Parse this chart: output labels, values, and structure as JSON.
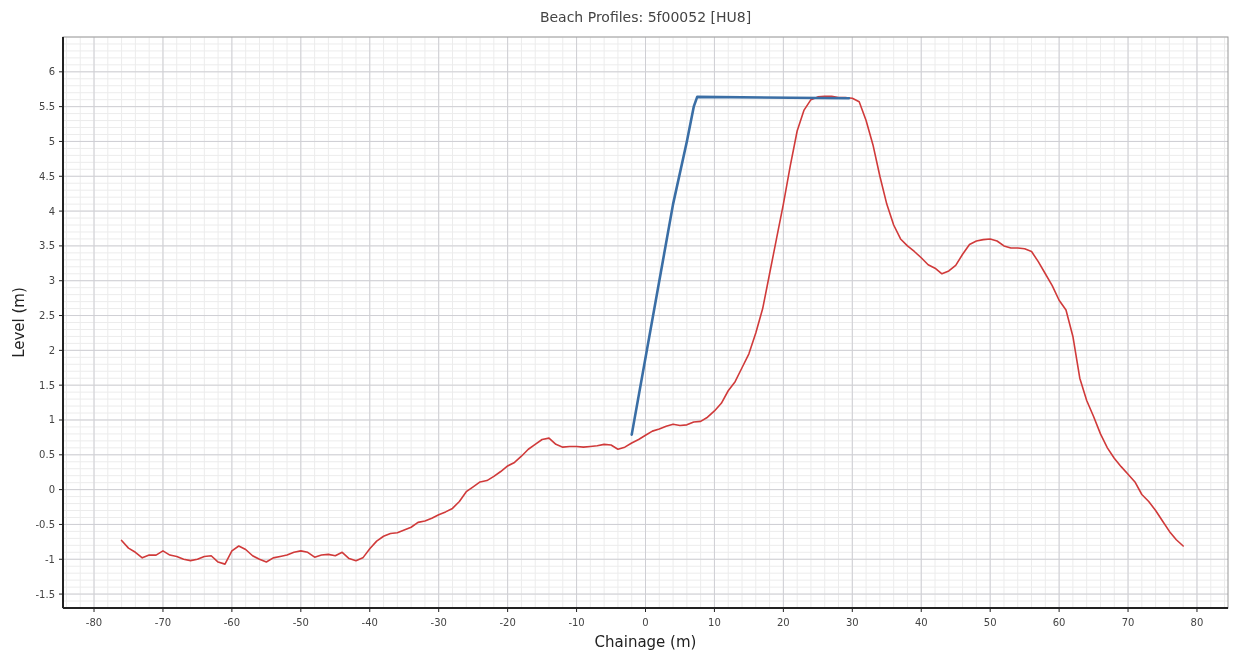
{
  "chart_data": {
    "type": "line",
    "title": "Beach Profiles: 5f00052 [HU8]",
    "xlabel": "Chainage (m)",
    "ylabel": "Level (m)",
    "xlim": [
      -84.5,
      84.5
    ],
    "ylim": [
      -1.7,
      6.5
    ],
    "xticks": [
      -80,
      -70,
      -60,
      -50,
      -40,
      -30,
      -20,
      -10,
      0,
      10,
      20,
      30,
      40,
      50,
      60,
      70,
      80
    ],
    "yticks": [
      -1.5,
      -1,
      -0.5,
      0,
      0.5,
      1,
      1.5,
      2,
      2.5,
      3,
      3.5,
      4,
      4.5,
      5,
      5.5,
      6
    ],
    "grid": true,
    "line_style": "solid",
    "marker": "none",
    "series": [
      {
        "color": "#d03a3a",
        "x": [
          -76,
          -75,
          -74,
          -73,
          -72,
          -71,
          -70,
          -69,
          -68,
          -67,
          -66,
          -65,
          -64,
          -63,
          -62,
          -61,
          -60,
          -59,
          -58,
          -57,
          -56,
          -55,
          -54,
          -53,
          -52,
          -51,
          -50,
          -49,
          -48,
          -47,
          -46,
          -45,
          -44,
          -43,
          -42,
          -41,
          -40,
          -39,
          -38,
          -37,
          -36,
          -35,
          -34,
          -33,
          -32,
          -31,
          -30,
          -29,
          -28,
          -27,
          -26,
          -25,
          -24,
          -23,
          -22,
          -21,
          -20,
          -19,
          -18,
          -17,
          -16,
          -15,
          -14,
          -13,
          -12,
          -11,
          -10,
          -9,
          -8,
          -7,
          -6,
          -5,
          -4,
          -3,
          -2,
          -1,
          0,
          1,
          2,
          3,
          4,
          5,
          6,
          7,
          8,
          9,
          10,
          11,
          12,
          13,
          14,
          15,
          16,
          17,
          18,
          19,
          20,
          21,
          22,
          23,
          24,
          25,
          26,
          27,
          28,
          29,
          30,
          31,
          32,
          33,
          34,
          35,
          36,
          37,
          38,
          39,
          40,
          41,
          42,
          43,
          44,
          45,
          46,
          47,
          48,
          49,
          50,
          51,
          52,
          53,
          54,
          55,
          56,
          57,
          58,
          59,
          60,
          61,
          62,
          63,
          64,
          65,
          66,
          67,
          68,
          69,
          70,
          71,
          72,
          73,
          74,
          75,
          76,
          77,
          78
        ],
        "values": [
          -0.73,
          -0.84,
          -0.9,
          -0.98,
          -0.94,
          -0.94,
          -0.88,
          -0.94,
          -0.96,
          -1.0,
          -1.02,
          -1.0,
          -0.96,
          -0.95,
          -1.04,
          -1.07,
          -0.88,
          -0.81,
          -0.86,
          -0.95,
          -1.0,
          -1.04,
          -0.98,
          -0.96,
          -0.94,
          -0.9,
          -0.88,
          -0.9,
          -0.97,
          -0.94,
          -0.93,
          -0.95,
          -0.9,
          -0.99,
          -1.02,
          -0.98,
          -0.85,
          -0.74,
          -0.67,
          -0.63,
          -0.62,
          -0.58,
          -0.54,
          -0.47,
          -0.45,
          -0.41,
          -0.36,
          -0.32,
          -0.27,
          -0.17,
          -0.03,
          0.04,
          0.11,
          0.13,
          0.19,
          0.26,
          0.34,
          0.39,
          0.48,
          0.58,
          0.65,
          0.72,
          0.74,
          0.65,
          0.61,
          0.62,
          0.62,
          0.61,
          0.62,
          0.63,
          0.65,
          0.64,
          0.58,
          0.61,
          0.67,
          0.72,
          0.78,
          0.84,
          0.87,
          0.91,
          0.94,
          0.92,
          0.93,
          0.97,
          0.98,
          1.04,
          1.13,
          1.24,
          1.42,
          1.55,
          1.75,
          1.95,
          2.25,
          2.6,
          3.1,
          3.6,
          4.1,
          4.65,
          5.15,
          5.45,
          5.6,
          5.64,
          5.65,
          5.65,
          5.63,
          5.63,
          5.62,
          5.57,
          5.3,
          4.95,
          4.5,
          4.1,
          3.8,
          3.6,
          3.5,
          3.42,
          3.33,
          3.23,
          3.18,
          3.1,
          3.14,
          3.22,
          3.38,
          3.52,
          3.57,
          3.59,
          3.6,
          3.57,
          3.5,
          3.47,
          3.47,
          3.46,
          3.42,
          3.27,
          3.1,
          2.93,
          2.72,
          2.58,
          2.2,
          1.6,
          1.28,
          1.05,
          0.8,
          0.6,
          0.45,
          0.33,
          0.22,
          0.11,
          -0.07,
          -0.17,
          -0.3,
          -0.45,
          -0.6,
          -0.72,
          -0.81
        ]
      },
      {
        "color": "#3a6ea5",
        "x": [
          -2,
          4,
          6,
          7,
          7.5,
          29.5
        ],
        "values": [
          0.79,
          4.1,
          5.0,
          5.5,
          5.64,
          5.62
        ]
      }
    ]
  }
}
